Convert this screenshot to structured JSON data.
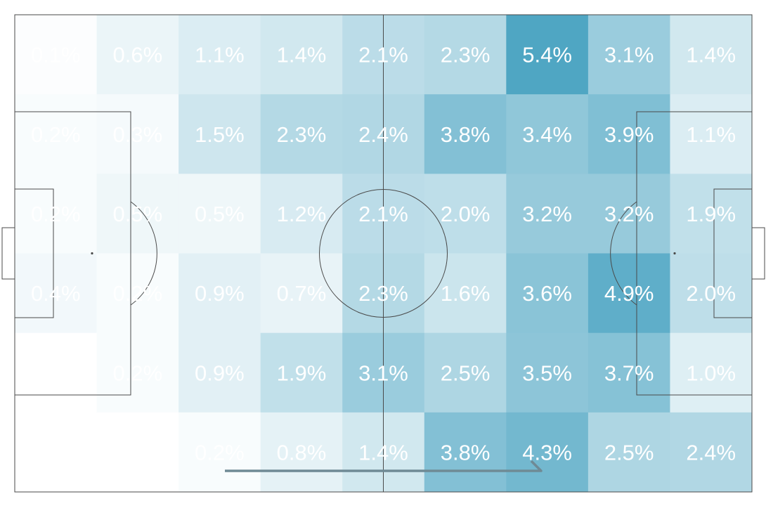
{
  "chart_data": {
    "type": "heatmap",
    "title": "",
    "value_format": "percent",
    "columns": 9,
    "rows": 6,
    "values": [
      [
        0.1,
        0.6,
        1.1,
        1.4,
        2.1,
        2.3,
        5.4,
        3.1,
        1.4
      ],
      [
        0.2,
        0.3,
        1.5,
        2.3,
        2.4,
        3.8,
        3.4,
        3.9,
        1.1
      ],
      [
        0.2,
        0.5,
        0.5,
        1.2,
        2.1,
        2.0,
        3.2,
        3.2,
        1.9
      ],
      [
        0.4,
        0.2,
        0.9,
        0.7,
        2.3,
        1.6,
        3.6,
        4.9,
        2.0
      ],
      [
        0.0,
        0.2,
        0.9,
        1.9,
        3.1,
        2.5,
        3.5,
        3.7,
        1.0
      ],
      [
        0.0,
        0.0,
        0.2,
        0.8,
        1.4,
        3.8,
        4.3,
        2.5,
        2.4
      ]
    ],
    "labels": [
      [
        "0.1%",
        "0.6%",
        "1.1%",
        "1.4%",
        "2.1%",
        "2.3%",
        "5.4%",
        "3.1%",
        "1.4%"
      ],
      [
        "0.2%",
        "0.3%",
        "1.5%",
        "2.3%",
        "2.4%",
        "3.8%",
        "3.4%",
        "3.9%",
        "1.1%"
      ],
      [
        "0.2%",
        "0.5%",
        "0.5%",
        "1.2%",
        "2.1%",
        "2.0%",
        "3.2%",
        "3.2%",
        "1.9%"
      ],
      [
        "0.4%",
        "0.2%",
        "0.9%",
        "0.7%",
        "2.3%",
        "1.6%",
        "3.6%",
        "4.9%",
        "2.0%"
      ],
      [
        "",
        "0.2%",
        "0.9%",
        "1.9%",
        "3.1%",
        "2.5%",
        "3.5%",
        "3.7%",
        "1.0%"
      ],
      [
        "",
        "",
        "0.2%",
        "0.8%",
        "1.4%",
        "3.8%",
        "4.3%",
        "2.5%",
        "2.4%"
      ]
    ],
    "color_scale": {
      "low": "#ffffff",
      "high": "#4fa6c3",
      "max_value": 5.4
    },
    "attack_direction": "left-to-right",
    "colors": {
      "pitch_line": "#4a4a4a",
      "label": "#ffffff",
      "arrow": "#6f8a95"
    }
  }
}
